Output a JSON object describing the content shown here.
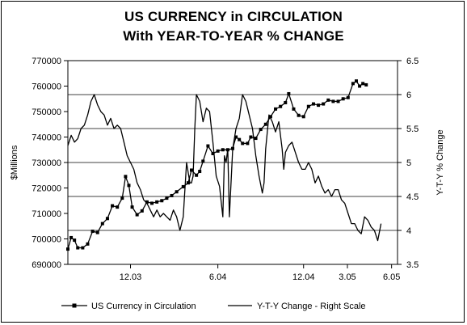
{
  "chart_data": {
    "type": "line",
    "title": "US CURRENCY in CIRCULATION",
    "subtitle": "With YEAR-TO-YEAR % CHANGE",
    "ylabel": "$Millions",
    "y2label": "Y-T-Y % Change",
    "ylim": [
      690000,
      770000
    ],
    "y2lim": [
      3.5,
      6.5
    ],
    "yticks": [
      "690000",
      "700000",
      "710000",
      "720000",
      "730000",
      "740000",
      "750000",
      "760000",
      "770000"
    ],
    "y2ticks": [
      "3.5",
      "4",
      "4.5",
      "5",
      "5.5",
      "6",
      "6.5"
    ],
    "xlim": [
      0,
      100
    ],
    "xticks": [
      {
        "x": 19,
        "label": "12.03"
      },
      {
        "x": 45.5,
        "label": "6.04"
      },
      {
        "x": 71.5,
        "label": "12.04"
      },
      {
        "x": 84.8,
        "label": "3.05"
      },
      {
        "x": 98.2,
        "label": "6.05"
      }
    ],
    "grid": "horizontal",
    "legend_position": "bottom",
    "series": [
      {
        "name": "US Currency in Circulation",
        "axis": "left",
        "marker": "square",
        "color": "#000000",
        "points": [
          [
            0,
            696000
          ],
          [
            1,
            700500
          ],
          [
            2,
            699500
          ],
          [
            3,
            696500
          ],
          [
            4.5,
            696500
          ],
          [
            6,
            698000
          ],
          [
            7.5,
            703000
          ],
          [
            9,
            702500
          ],
          [
            10.5,
            706000
          ],
          [
            12,
            708000
          ],
          [
            13.5,
            713000
          ],
          [
            15,
            712500
          ],
          [
            16.5,
            716000
          ],
          [
            17.5,
            724500
          ],
          [
            18.5,
            721000
          ],
          [
            19.5,
            712500
          ],
          [
            21,
            709500
          ],
          [
            22.5,
            711000
          ],
          [
            24,
            714500
          ],
          [
            25.5,
            714000
          ],
          [
            27,
            714500
          ],
          [
            28.5,
            715000
          ],
          [
            30,
            716000
          ],
          [
            31.5,
            717000
          ],
          [
            33,
            718500
          ],
          [
            35,
            720500
          ],
          [
            36.5,
            722000
          ],
          [
            37.5,
            727000
          ],
          [
            39,
            725000
          ],
          [
            40,
            726500
          ],
          [
            41,
            730500
          ],
          [
            42.5,
            736500
          ],
          [
            44,
            733500
          ],
          [
            45.5,
            734500
          ],
          [
            47,
            735000
          ],
          [
            48.5,
            735000
          ],
          [
            50,
            735500
          ],
          [
            51,
            740000
          ],
          [
            52,
            739000
          ],
          [
            53,
            737500
          ],
          [
            54.5,
            737500
          ],
          [
            55.5,
            740000
          ],
          [
            57,
            739500
          ],
          [
            58.5,
            743000
          ],
          [
            60,
            745000
          ],
          [
            61.5,
            748000
          ],
          [
            63,
            751000
          ],
          [
            64.5,
            752000
          ],
          [
            66,
            753500
          ],
          [
            67,
            757000
          ],
          [
            68.5,
            751000
          ],
          [
            70,
            748500
          ],
          [
            71.5,
            748000
          ],
          [
            73,
            752000
          ],
          [
            74.5,
            753000
          ],
          [
            76,
            752500
          ],
          [
            77.5,
            753000
          ],
          [
            79,
            754500
          ],
          [
            80.5,
            754000
          ],
          [
            82,
            754000
          ],
          [
            83.5,
            755000
          ],
          [
            85,
            755500
          ],
          [
            86.5,
            761000
          ],
          [
            87.5,
            762000
          ],
          [
            88.5,
            760000
          ],
          [
            89.5,
            761000
          ],
          [
            90.5,
            760500
          ]
        ]
      },
      {
        "name": "Y-T-Y Change - Right Scale",
        "axis": "right",
        "marker": "none",
        "color": "#000000",
        "points": [
          [
            0,
            5.25
          ],
          [
            1,
            5.4
          ],
          [
            2,
            5.3
          ],
          [
            3,
            5.35
          ],
          [
            4,
            5.5
          ],
          [
            5,
            5.55
          ],
          [
            6,
            5.7
          ],
          [
            7,
            5.9
          ],
          [
            8,
            6.0
          ],
          [
            9,
            5.85
          ],
          [
            10,
            5.75
          ],
          [
            11,
            5.7
          ],
          [
            12,
            5.55
          ],
          [
            13,
            5.65
          ],
          [
            14,
            5.5
          ],
          [
            15,
            5.55
          ],
          [
            16,
            5.5
          ],
          [
            17,
            5.3
          ],
          [
            18,
            5.1
          ],
          [
            19,
            5.0
          ],
          [
            20,
            4.9
          ],
          [
            21,
            4.7
          ],
          [
            22,
            4.6
          ],
          [
            23,
            4.45
          ],
          [
            24,
            4.4
          ],
          [
            25,
            4.3
          ],
          [
            26,
            4.2
          ],
          [
            27,
            4.3
          ],
          [
            28,
            4.2
          ],
          [
            29,
            4.25
          ],
          [
            30,
            4.2
          ],
          [
            31,
            4.15
          ],
          [
            32,
            4.3
          ],
          [
            33,
            4.2
          ],
          [
            34,
            4.0
          ],
          [
            35,
            4.2
          ],
          [
            36,
            5.0
          ],
          [
            37,
            4.7
          ],
          [
            37.5,
            4.7
          ],
          [
            38,
            4.8
          ],
          [
            38.5,
            5.5
          ],
          [
            39,
            6.0
          ],
          [
            40,
            5.9
          ],
          [
            41,
            5.6
          ],
          [
            42,
            5.8
          ],
          [
            43,
            5.75
          ],
          [
            44,
            5.3
          ],
          [
            45,
            4.8
          ],
          [
            46,
            4.65
          ],
          [
            47,
            4.2
          ],
          [
            47.5,
            5.1
          ],
          [
            48,
            5.0
          ],
          [
            48.5,
            5.2
          ],
          [
            49,
            4.2
          ],
          [
            50,
            5.2
          ],
          [
            51,
            5.5
          ],
          [
            52,
            5.65
          ],
          [
            53,
            6.0
          ],
          [
            54,
            5.9
          ],
          [
            55,
            5.7
          ],
          [
            56,
            5.5
          ],
          [
            57,
            5.1
          ],
          [
            58,
            4.8
          ],
          [
            59,
            4.55
          ],
          [
            59.5,
            4.7
          ],
          [
            60,
            5.2
          ],
          [
            61,
            5.7
          ],
          [
            62,
            5.6
          ],
          [
            63,
            5.45
          ],
          [
            64,
            5.6
          ],
          [
            65,
            5.2
          ],
          [
            65.5,
            4.9
          ],
          [
            66,
            5.15
          ],
          [
            67,
            5.25
          ],
          [
            68,
            5.3
          ],
          [
            69,
            5.15
          ],
          [
            70,
            5.0
          ],
          [
            71,
            4.9
          ],
          [
            72,
            4.9
          ],
          [
            73,
            5.0
          ],
          [
            74,
            4.9
          ],
          [
            75,
            4.7
          ],
          [
            76,
            4.8
          ],
          [
            77,
            4.65
          ],
          [
            78,
            4.55
          ],
          [
            79,
            4.6
          ],
          [
            80,
            4.5
          ],
          [
            81,
            4.6
          ],
          [
            82,
            4.6
          ],
          [
            83,
            4.45
          ],
          [
            84,
            4.4
          ],
          [
            85,
            4.25
          ],
          [
            86,
            4.1
          ],
          [
            87,
            4.1
          ],
          [
            88,
            4.0
          ],
          [
            89,
            3.95
          ],
          [
            90,
            4.2
          ],
          [
            91,
            4.15
          ],
          [
            92,
            4.05
          ],
          [
            93,
            4.0
          ],
          [
            94,
            3.85
          ],
          [
            95,
            4.1
          ]
        ]
      }
    ]
  }
}
